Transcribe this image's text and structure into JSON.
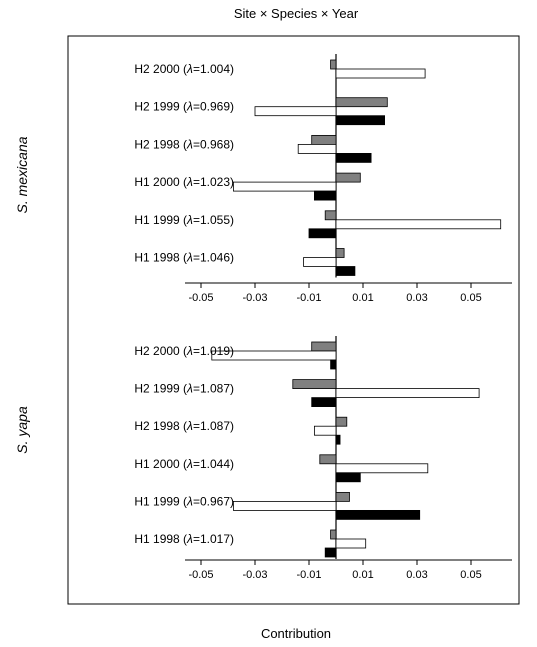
{
  "chart_data": {
    "type": "bar",
    "orientation": "horizontal",
    "title": "Site × Species × Year",
    "xlabel": "Contribution",
    "xlim": [
      -0.05,
      0.065
    ],
    "xticks": [
      "-0.05",
      "-0.03",
      "-0.01",
      "0.01",
      "0.03",
      "0.05"
    ],
    "xtick_values": [
      -0.05,
      -0.03,
      -0.01,
      0.01,
      0.03,
      0.05
    ],
    "series_colors": [
      "#808080",
      "#ffffff",
      "#000000"
    ],
    "panels": [
      {
        "ylabel": "S. mexicana",
        "groups": [
          {
            "pre": "H2 2000 (",
            "lam": "λ",
            "post": "=1.004)",
            "values": [
              -0.002,
              0.033,
              0.0
            ]
          },
          {
            "pre": "H2 1999 (",
            "lam": "λ",
            "post": "=0.969)",
            "values": [
              0.019,
              -0.03,
              0.018
            ]
          },
          {
            "pre": "H2 1998 (",
            "lam": "λ",
            "post": "=0.968)",
            "values": [
              -0.009,
              -0.014,
              0.013
            ]
          },
          {
            "pre": "H1 2000 (",
            "lam": "λ",
            "post": "=1.023)",
            "values": [
              0.009,
              -0.038,
              -0.008
            ]
          },
          {
            "pre": "H1 1999 (",
            "lam": "λ",
            "post": "=1.055)",
            "values": [
              -0.004,
              0.061,
              -0.01
            ]
          },
          {
            "pre": "H1 1998 (",
            "lam": "λ",
            "post": "=1.046)",
            "values": [
              0.003,
              -0.012,
              0.007
            ]
          }
        ]
      },
      {
        "ylabel": "S. yapa",
        "groups": [
          {
            "pre": "H2 2000 (",
            "lam": "λ",
            "post": "=1.019)",
            "values": [
              -0.009,
              -0.046,
              -0.002
            ]
          },
          {
            "pre": "H2 1999 (",
            "lam": "λ",
            "post": "=1.087)",
            "values": [
              -0.016,
              0.053,
              -0.009
            ]
          },
          {
            "pre": "H2 1998 (",
            "lam": "λ",
            "post": "=1.087)",
            "values": [
              0.004,
              -0.008,
              0.0015
            ]
          },
          {
            "pre": "H1 2000 (",
            "lam": "λ",
            "post": "=1.044)",
            "values": [
              -0.006,
              0.034,
              0.009
            ]
          },
          {
            "pre": "H1 1999 (",
            "lam": "λ",
            "post": "=0.967)",
            "values": [
              0.005,
              -0.038,
              0.031
            ]
          },
          {
            "pre": "H1 1998 (",
            "lam": "λ",
            "post": "=1.017)",
            "values": [
              -0.002,
              0.011,
              -0.004
            ]
          }
        ]
      }
    ]
  }
}
